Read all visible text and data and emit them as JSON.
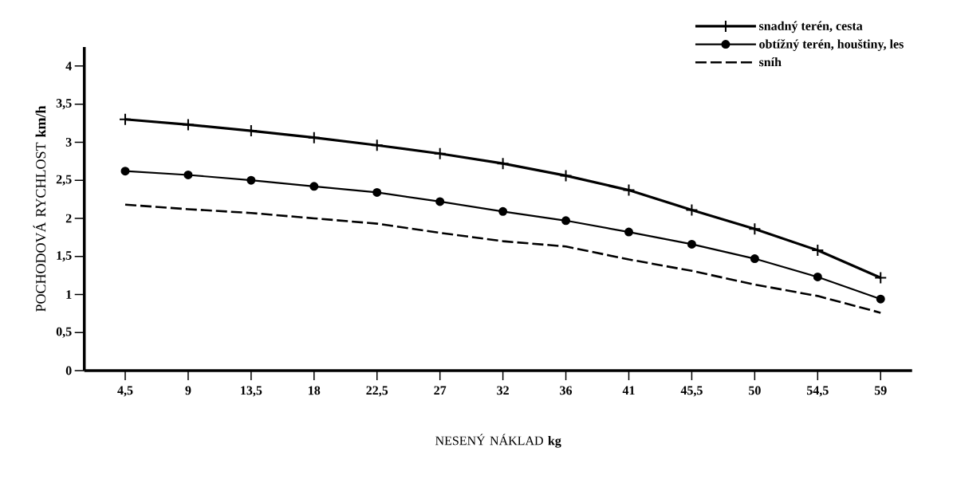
{
  "chart_data": {
    "type": "line",
    "xlabel": "NESENÝ NÁKLAD **kg**",
    "ylabel": "POCHODOVÁ RYCHLOST **km/h**",
    "categories": [
      "4,5",
      "9",
      "13,5",
      "18",
      "22,5",
      "27",
      "32",
      "36",
      "41",
      "45,5",
      "50",
      "54,5",
      "59"
    ],
    "ylim": [
      0,
      4.25
    ],
    "yticks": [
      0,
      {
        "value": 0.5,
        "label": "0,5"
      },
      1,
      {
        "value": 1.5,
        "label": "1,5"
      },
      2,
      {
        "value": 2.5,
        "label": "2,5"
      },
      3,
      {
        "value": 3.5,
        "label": "3,5"
      },
      4
    ],
    "legend": "top right",
    "grid": false,
    "series": [
      {
        "name": "snadný terén, cesta",
        "color": "#000000",
        "marker": "cross",
        "line_style": "solid",
        "values": [
          3.3,
          3.23,
          3.15,
          3.06,
          2.96,
          2.85,
          2.72,
          2.56,
          2.37,
          2.11,
          1.86,
          1.58,
          1.22
        ]
      },
      {
        "name": "obtížný terén, houštiny, les",
        "color": "#000000",
        "marker": "circle",
        "line_style": "solid",
        "values": [
          2.62,
          2.57,
          2.5,
          2.42,
          2.34,
          2.22,
          2.09,
          1.97,
          1.82,
          1.66,
          1.47,
          1.23,
          0.94
        ]
      },
      {
        "name": "sníh",
        "color": "#000000",
        "marker": "none",
        "line_style": "dashed",
        "values": [
          2.18,
          2.12,
          2.07,
          2.0,
          1.93,
          1.81,
          1.7,
          1.63,
          1.46,
          1.31,
          1.13,
          0.98,
          0.76
        ]
      }
    ]
  }
}
